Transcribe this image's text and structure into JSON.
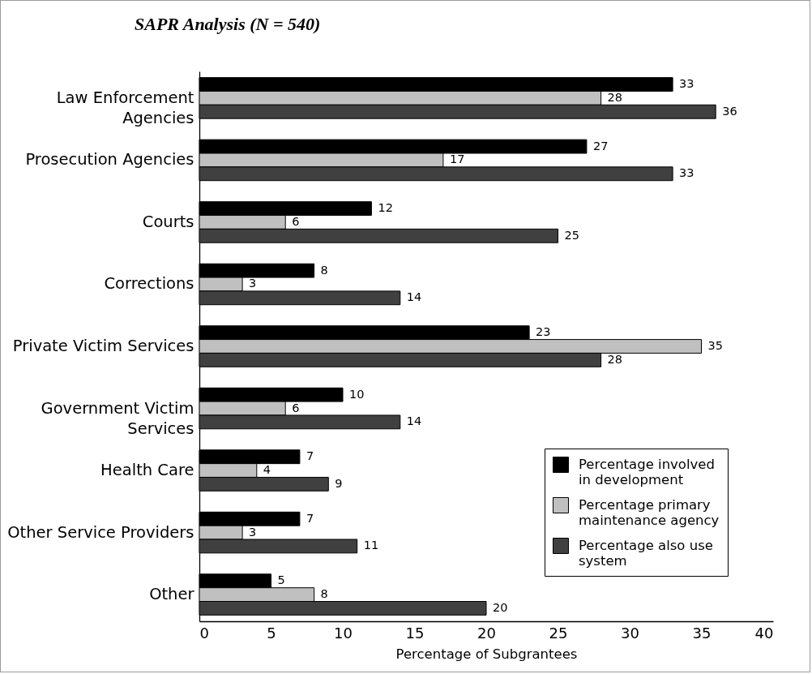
{
  "chart_data": {
    "type": "bar",
    "orientation": "horizontal",
    "title": "SAPR Analysis (N = 540)",
    "xlabel": "Percentage of Subgrantees",
    "categories": [
      "Law Enforcement Agencies",
      "Prosecution Agencies",
      "Courts",
      "Corrections",
      "Private Victim Services",
      "Government Victim Services",
      "Health Care",
      "Other Service Providers",
      "Other"
    ],
    "series": [
      {
        "name": "Percentage involved in development",
        "color": "#000000",
        "values": [
          33,
          27,
          12,
          8,
          23,
          10,
          7,
          7,
          5
        ]
      },
      {
        "name": "Percentage primary maintenance agency",
        "color": "#c0c0c0",
        "values": [
          28,
          17,
          6,
          3,
          35,
          6,
          4,
          3,
          8
        ]
      },
      {
        "name": "Percentage also use system",
        "color": "#404040",
        "values": [
          36,
          33,
          25,
          14,
          28,
          14,
          9,
          11,
          20
        ]
      }
    ],
    "xlim": [
      0,
      40
    ],
    "xticks": [
      0,
      5,
      10,
      15,
      20,
      25,
      30,
      35,
      40
    ],
    "data_labels": true,
    "legend": "bottom right"
  }
}
